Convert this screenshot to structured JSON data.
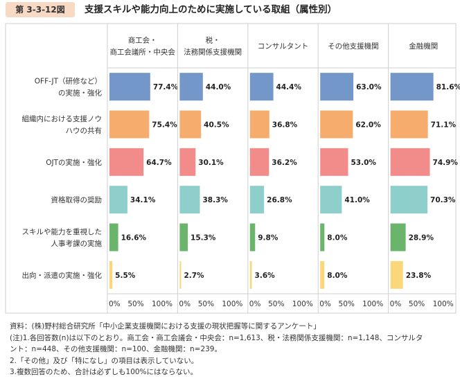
{
  "figure_number": "第 3-3-12図",
  "title": "支援スキルや能力向上のために実施している取組（属性別）",
  "chart_data": {
    "type": "bar",
    "orientation": "horizontal",
    "layout": "small-multiples",
    "xlim": [
      0,
      100
    ],
    "x_ticks": [
      "0%",
      "50%",
      "100%"
    ],
    "categories": [
      [
        "OFF-JT（研修など）",
        "の実施・強化"
      ],
      [
        "組織内における支援ノウ",
        "ハウの共有"
      ],
      [
        "OJTの実施・強化"
      ],
      [
        "資格取得の奨励"
      ],
      [
        "スキルや能力を重視した",
        "人事考課の実施"
      ],
      [
        "出向・派遣の実施・強化"
      ]
    ],
    "series": [
      {
        "name": [
          "商工会・",
          "商工会議所・中央会"
        ],
        "color": "#7397c9",
        "values": [
          77.4,
          75.4,
          64.7,
          34.1,
          16.6,
          5.5
        ],
        "labels": [
          "77.4%",
          "75.4%",
          "64.7%",
          "34.1%",
          "16.6%",
          "5.5%"
        ]
      },
      {
        "name": [
          "税・",
          "法務関係支援機関"
        ],
        "color": "#f5ac6d",
        "values": [
          44.0,
          40.5,
          30.1,
          38.3,
          15.3,
          2.7
        ],
        "labels": [
          "44.0%",
          "40.5%",
          "30.1%",
          "38.3%",
          "15.3%",
          "2.7%"
        ]
      },
      {
        "name": [
          "コンサルタント"
        ],
        "color": "#f28c8a",
        "values": [
          44.4,
          36.8,
          36.2,
          26.8,
          9.8,
          3.6
        ],
        "labels": [
          "44.4%",
          "36.8%",
          "36.2%",
          "26.8%",
          "9.8%",
          "3.6%"
        ]
      },
      {
        "name": [
          "その他支援機関"
        ],
        "color": "#8ecfcb",
        "values": [
          63.0,
          62.0,
          53.0,
          41.0,
          8.0,
          8.0
        ],
        "labels": [
          "63.0%",
          "62.0%",
          "53.0%",
          "41.0%",
          "8.0%",
          "8.0%"
        ]
      },
      {
        "name": [
          "金融機関"
        ],
        "color": "#6ab46b",
        "values": [
          81.6,
          71.1,
          74.9,
          70.3,
          28.9,
          23.8
        ],
        "labels": [
          "81.6%",
          "71.1%",
          "74.9%",
          "70.3%",
          "28.9%",
          "23.8%"
        ]
      }
    ],
    "category_colors": [
      "#7397c9",
      "#f5ac6d",
      "#f28c8a",
      "#8ecfcb",
      "#6ab46b",
      "#f9d77a"
    ]
  },
  "notes": [
    "資料：(株)野村総合研究所「中小企業支援機関における支援の現状把握等に関するアンケート」",
    "(注)1.各回答数(n)は以下のとおり。商工会・商工会議会・中央会：n=1,613、税・法務関係支援機関：n=1,148、コンサルタ",
    "ント：n=448、その他支援機関：n=100、金融機関：n=239。",
    "2.「その他」及び「特になし」の項目は表示していない。",
    "3.複数回答のため、合計は必ずしも100%にはならない。"
  ]
}
